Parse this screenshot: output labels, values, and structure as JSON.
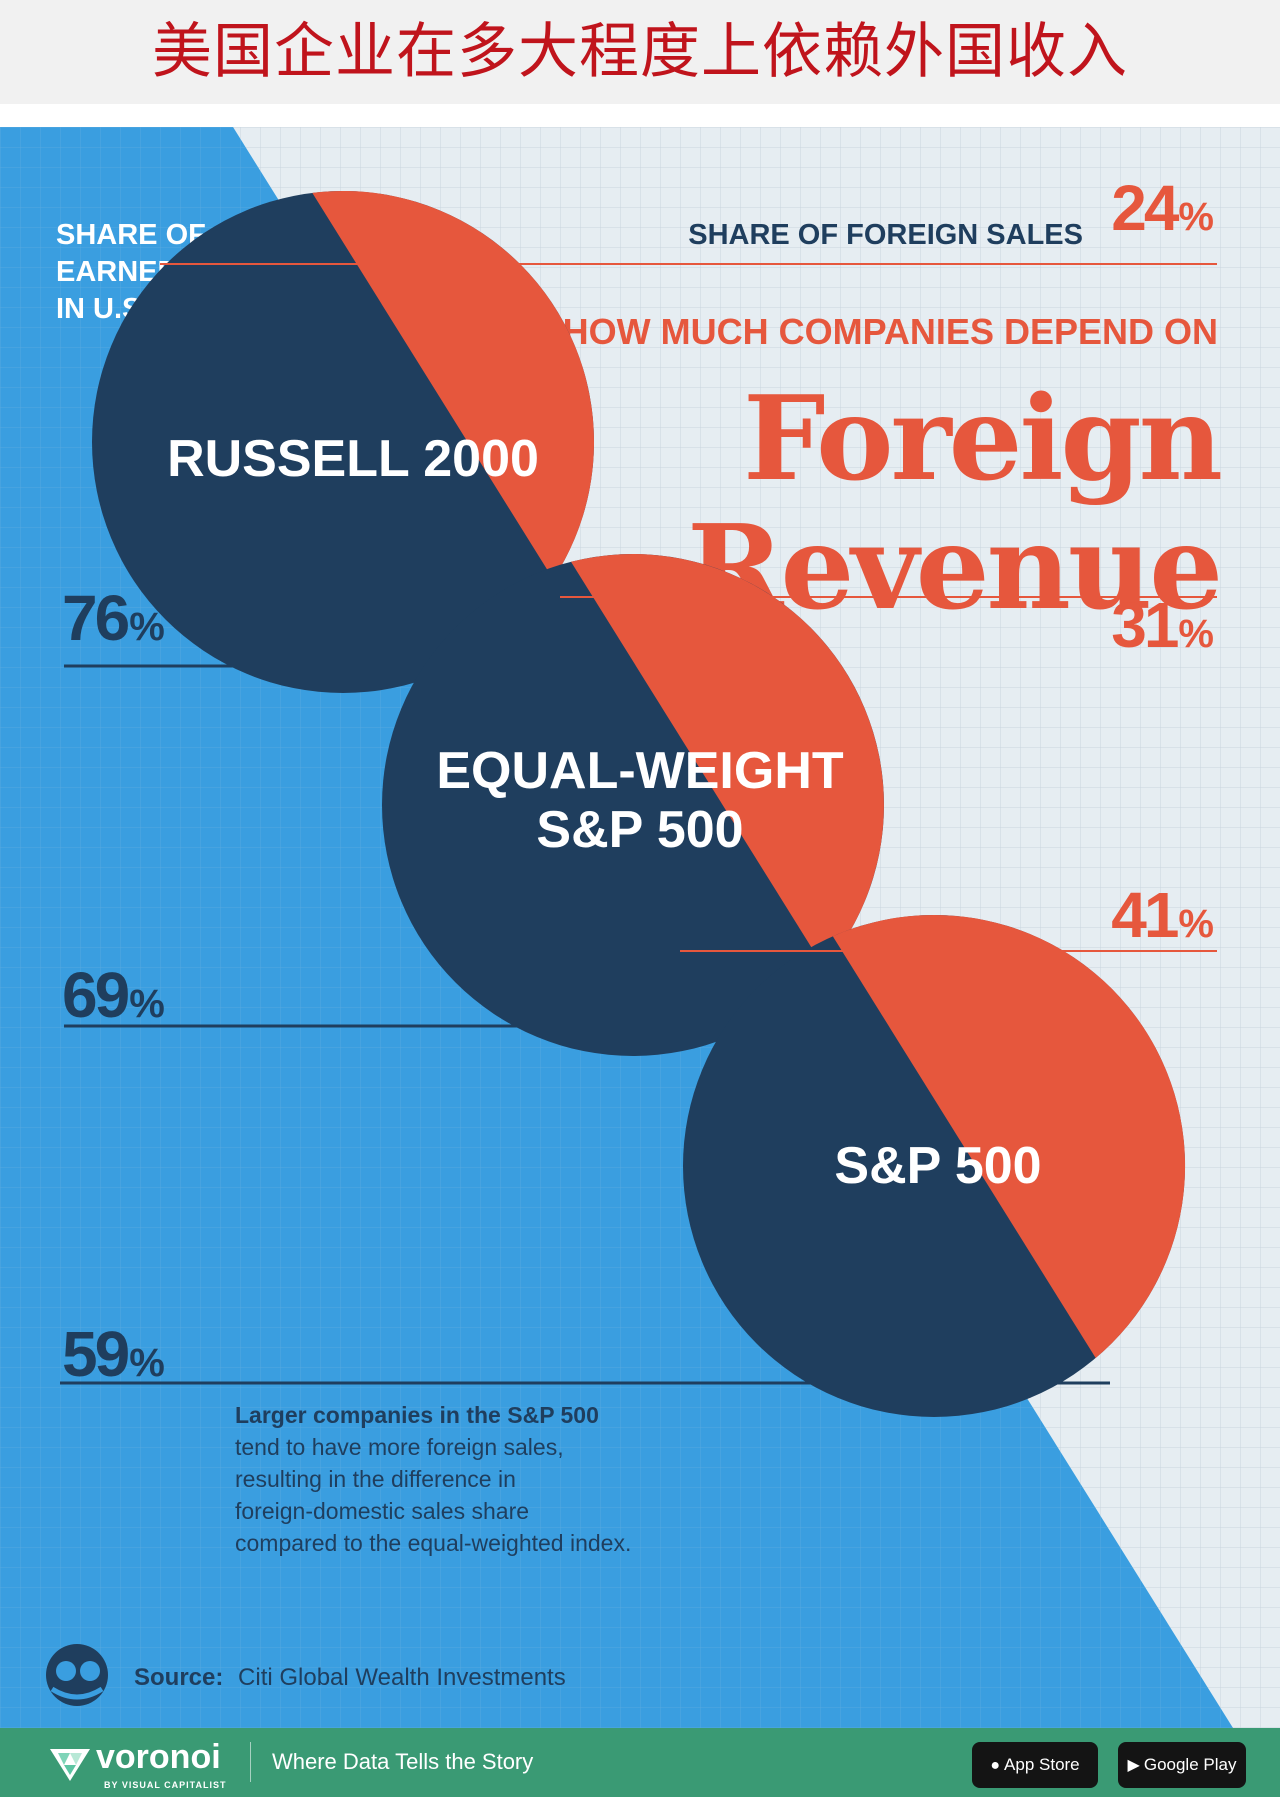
{
  "header": {
    "title": "美国企业在多大程度上依赖外国收入"
  },
  "poster": {
    "colors": {
      "blue": "#3a9ee0",
      "paper": "#e6edf2",
      "navy": "#1f3e5e",
      "red": "#e6573d",
      "grid": "#c9d5de"
    },
    "left_label_lines": [
      "SHARE OF SALES",
      "EARNED",
      "IN U.S."
    ],
    "right_label": "SHARE OF FOREIGN SALES",
    "kicker": "HOW MUCH COMPANIES DEPEND ON",
    "title_line1": "Foreign",
    "title_line2": "Revenue",
    "note_lines": [
      "Larger companies in the S&P 500",
      "tend to have more foreign sales,",
      "resulting in the difference in",
      "foreign-domestic sales share",
      "compared to the equal-weighted index."
    ],
    "source_label": "Source:",
    "source_text": "Citi Global Wealth Investments"
  },
  "chart_data": {
    "type": "pie",
    "unit": "%",
    "series": [
      {
        "name": "Share of Sales Earned in U.S."
      },
      {
        "name": "Share of Foreign Sales"
      }
    ],
    "items": [
      {
        "name": "RUSSELL 2000",
        "label_lines": [
          "RUSSELL 2000"
        ],
        "domestic": 76,
        "foreign": 24
      },
      {
        "name": "EQUAL-WEIGHT S&P 500",
        "label_lines": [
          "EQUAL-WEIGHT",
          "S&P 500"
        ],
        "domestic": 69,
        "foreign": 31
      },
      {
        "name": "S&P 500",
        "label_lines": [
          "S&P 500"
        ],
        "domestic": 59,
        "foreign": 41
      }
    ]
  },
  "footer": {
    "brand": "voronoi",
    "brand_sub": "BY VISUAL CAPITALIST",
    "tagline": "Where Data Tells the Story",
    "app_store": "App Store",
    "google_play": "Google Play"
  }
}
